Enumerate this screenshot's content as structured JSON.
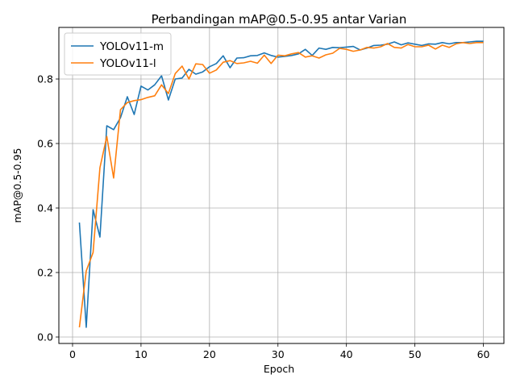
{
  "chart_data": {
    "type": "line",
    "title": "Perbandingan mAP@0.5-0.95 antar Varian",
    "xlabel": "Epoch",
    "ylabel": "mAP@0.5-0.95",
    "xlim": [
      -2,
      63
    ],
    "ylim": [
      -0.02,
      0.96
    ],
    "xticks": [
      0,
      10,
      20,
      30,
      40,
      50,
      60
    ],
    "yticks": [
      0.0,
      0.2,
      0.4,
      0.6,
      0.8
    ],
    "grid": true,
    "legend_position": "top-left",
    "x": [
      1,
      2,
      3,
      4,
      5,
      6,
      7,
      8,
      9,
      10,
      11,
      12,
      13,
      14,
      15,
      16,
      17,
      18,
      19,
      20,
      21,
      22,
      23,
      24,
      25,
      26,
      27,
      28,
      29,
      30,
      31,
      32,
      33,
      34,
      35,
      36,
      37,
      38,
      39,
      40,
      41,
      42,
      43,
      44,
      45,
      46,
      47,
      48,
      49,
      50,
      51,
      52,
      53,
      54,
      55,
      56,
      57,
      58,
      59,
      60
    ],
    "series": [
      {
        "name": "YOLOv11-m",
        "color": "#1f77b4",
        "values": [
          0.355,
          0.03,
          0.395,
          0.31,
          0.655,
          0.643,
          0.68,
          0.745,
          0.69,
          0.778,
          0.766,
          0.782,
          0.81,
          0.735,
          0.8,
          0.803,
          0.83,
          0.815,
          0.822,
          0.838,
          0.848,
          0.872,
          0.835,
          0.865,
          0.866,
          0.872,
          0.873,
          0.881,
          0.873,
          0.868,
          0.87,
          0.873,
          0.878,
          0.892,
          0.873,
          0.896,
          0.892,
          0.898,
          0.897,
          0.899,
          0.901,
          0.89,
          0.896,
          0.904,
          0.905,
          0.908,
          0.915,
          0.906,
          0.912,
          0.908,
          0.904,
          0.909,
          0.908,
          0.913,
          0.909,
          0.913,
          0.913,
          0.915,
          0.917,
          0.917
        ]
      },
      {
        "name": "YOLOv11-l",
        "color": "#ff7f0e",
        "values": [
          0.03,
          0.205,
          0.262,
          0.525,
          0.622,
          0.493,
          0.705,
          0.727,
          0.733,
          0.736,
          0.743,
          0.748,
          0.782,
          0.755,
          0.817,
          0.84,
          0.8,
          0.847,
          0.845,
          0.818,
          0.828,
          0.852,
          0.857,
          0.848,
          0.85,
          0.855,
          0.849,
          0.874,
          0.848,
          0.874,
          0.872,
          0.878,
          0.882,
          0.868,
          0.872,
          0.865,
          0.875,
          0.88,
          0.895,
          0.892,
          0.886,
          0.89,
          0.898,
          0.896,
          0.9,
          0.91,
          0.898,
          0.896,
          0.907,
          0.9,
          0.9,
          0.905,
          0.893,
          0.905,
          0.898,
          0.909,
          0.913,
          0.91,
          0.913,
          0.913
        ]
      }
    ]
  }
}
